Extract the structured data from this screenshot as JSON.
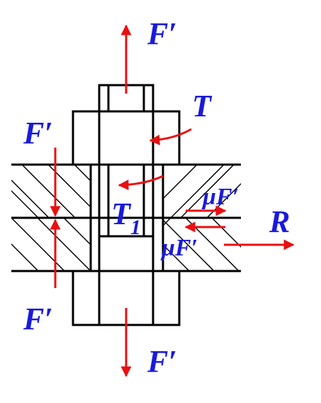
{
  "labels": {
    "f_top": "F′",
    "t_head": "T",
    "f_left_upper": "F′",
    "mu_f_upper": "μF′",
    "t1_main": "T",
    "t1_sub": "1",
    "r_right": "R",
    "mu_f_lower": "μF′",
    "f_left_lower": "F′",
    "f_bottom": "F′"
  },
  "colors": {
    "label": "#1a1adc",
    "force_arrow": "#e81010",
    "outline": "#000000"
  }
}
